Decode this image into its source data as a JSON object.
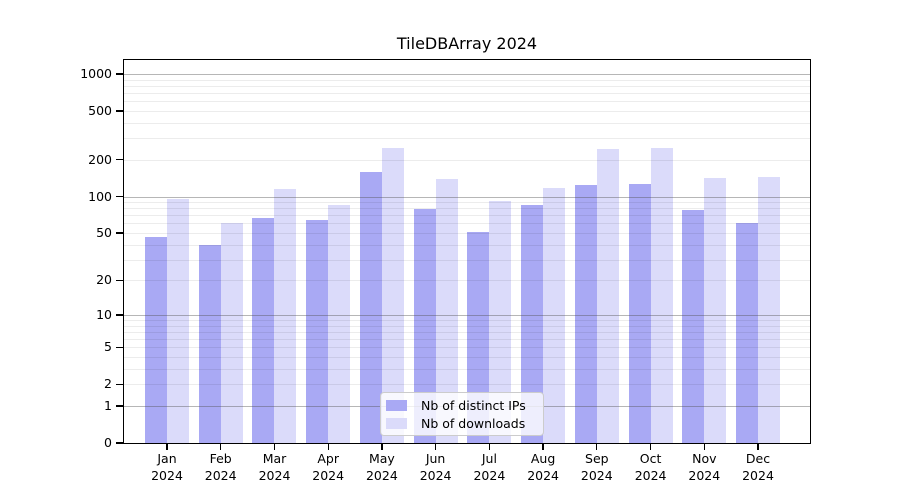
{
  "title": "TileDBArray 2024",
  "legend": {
    "items": [
      {
        "label": "Nb of distinct IPs",
        "color": "#a9a9f4"
      },
      {
        "label": "Nb of downloads",
        "color": "#dbdbfa"
      }
    ]
  },
  "chart_data": {
    "type": "bar",
    "title": "TileDBArray 2024",
    "categories": [
      "Jan",
      "Feb",
      "Mar",
      "Apr",
      "May",
      "Jun",
      "Jul",
      "Aug",
      "Sep",
      "Oct",
      "Nov",
      "Dec"
    ],
    "year_label": "2024",
    "series": [
      {
        "name": "Nb of distinct IPs",
        "color": "#a9a9f4",
        "values": [
          46,
          40,
          66,
          64,
          158,
          79,
          51,
          85,
          124,
          126,
          78,
          61
        ]
      },
      {
        "name": "Nb of downloads",
        "color": "#dbdbfa",
        "values": [
          96,
          60,
          115,
          86,
          248,
          139,
          92,
          117,
          244,
          252,
          142,
          145
        ]
      }
    ],
    "yscale": "log1p",
    "ylim": [
      0,
      1000
    ],
    "yticks": [
      0,
      1,
      2,
      5,
      10,
      20,
      50,
      100,
      200,
      500,
      1000
    ],
    "major_gridlines": [
      1,
      10,
      100,
      1000
    ],
    "minor_gridline_decades": [
      1,
      10,
      100
    ],
    "grid": true,
    "legend_position": "lower center"
  },
  "colors": {
    "background": "#ffffff",
    "spine": "#000000",
    "major_grid": "#b0b0b0",
    "minor_grid": "#ececec",
    "legend_border": "#cccccc"
  }
}
